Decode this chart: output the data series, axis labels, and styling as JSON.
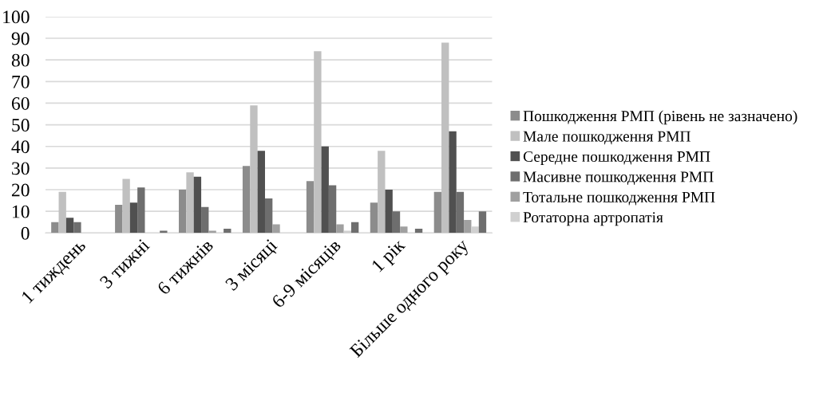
{
  "chart_data": {
    "type": "bar",
    "categories": [
      "1 тиждень",
      "3 тижні",
      "6 тижнів",
      "3 місяці",
      "6-9 місяців",
      "1 рік",
      "Більше одного року"
    ],
    "series": [
      {
        "name": "Пошкодження РМП (рівень не зазначено)",
        "color": "#8c8c8c",
        "values": [
          5,
          13,
          20,
          31,
          24,
          14,
          19
        ]
      },
      {
        "name": "Мале пошкодження РМП",
        "color": "#c0c0c0",
        "values": [
          19,
          25,
          28,
          59,
          84,
          38,
          88
        ]
      },
      {
        "name": "Середне пошкодження РМП",
        "color": "#505050",
        "values": [
          7,
          14,
          26,
          38,
          40,
          20,
          47
        ]
      },
      {
        "name": "Масивне пошкодження РМП",
        "color": "#6e6e6e",
        "values": [
          5,
          21,
          12,
          16,
          22,
          10,
          19
        ]
      },
      {
        "name": "Тотальне пошкодження РМП",
        "color": "#a0a0a0",
        "values": [
          0,
          0,
          1,
          4,
          4,
          3,
          6
        ]
      },
      {
        "name": "Ротаторна артропатія",
        "color": "#d0d0d0",
        "values": [
          0,
          0,
          0,
          0,
          1,
          0,
          3
        ]
      },
      {
        "color": "#6e6e6e",
        "values": [
          0,
          1,
          2,
          0,
          5,
          2,
          10
        ]
      }
    ],
    "ylim": [
      0,
      100
    ],
    "yticks": [
      0,
      10,
      20,
      30,
      40,
      50,
      60,
      70,
      80,
      90,
      100
    ],
    "grid": "y",
    "legend": "right"
  }
}
